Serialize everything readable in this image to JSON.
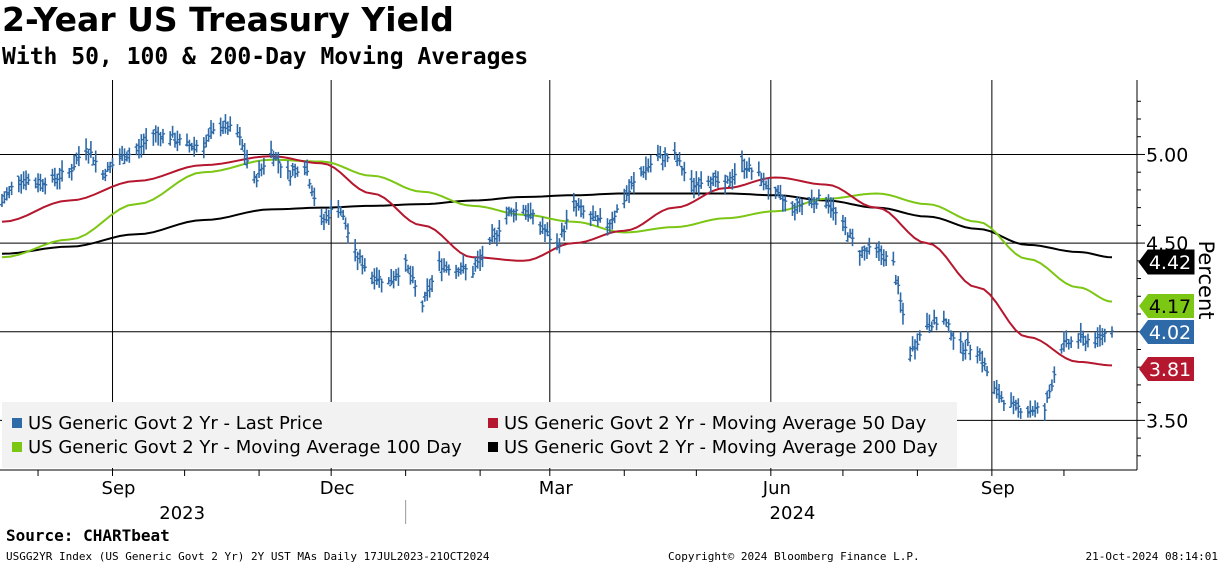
{
  "header": {
    "title": "2-Year US Treasury Yield",
    "subtitle": "With 50, 100 & 200-Day Moving Averages"
  },
  "footer": {
    "source": "Source: CHARTbeat",
    "left": "USGG2YR Index (US Generic Govt 2 Yr) 2Y UST MAs  Daily 17JUL2023-21OCT2024",
    "copyright": "Copyright© 2024 Bloomberg Finance L.P.",
    "timestamp": "21-Oct-2024 08:14:01"
  },
  "colors": {
    "last_price": "#2e6aa8",
    "ma50": "#b5172f",
    "ma100": "#7cc614",
    "ma200": "#000000"
  },
  "chart_data": {
    "type": "line",
    "title": "2-Year US Treasury Yield",
    "subtitle": "With 50, 100 & 200-Day Moving Averages",
    "ylabel": "Percent",
    "ylim": [
      3.22,
      5.42
    ],
    "y_ticks": [
      "5.00",
      "4.50",
      "3.50"
    ],
    "y_gridlines": [
      5.0,
      4.5,
      4.0,
      3.5
    ],
    "x_ticks": [
      "Sep",
      "Dec",
      "Mar",
      "Jun",
      "Sep"
    ],
    "x_tick_dates": [
      "2023-09-01",
      "2023-12-01",
      "2024-03-01",
      "2024-06-01",
      "2024-09-01"
    ],
    "year_labels": [
      "2023",
      "2024"
    ],
    "xlim": [
      "2023-07-17",
      "2024-10-21"
    ],
    "grid": true,
    "legend_position": "bottom-left",
    "series": [
      {
        "name": "US Generic Govt 2 Yr - Last Price",
        "style": "ohlc-bars",
        "color": "#2e6aa8",
        "last_value_label": "4.02",
        "points": [
          [
            "2023-07-17",
            4.73
          ],
          [
            "2023-07-24",
            4.87
          ],
          [
            "2023-07-31",
            4.84
          ],
          [
            "2023-08-07",
            4.86
          ],
          [
            "2023-08-14",
            4.9
          ],
          [
            "2023-08-21",
            5.05
          ],
          [
            "2023-08-28",
            4.89
          ],
          [
            "2023-09-04",
            4.98
          ],
          [
            "2023-09-11",
            5.02
          ],
          [
            "2023-09-18",
            5.12
          ],
          [
            "2023-09-25",
            5.1
          ],
          [
            "2023-10-02",
            5.05
          ],
          [
            "2023-10-09",
            5.06
          ],
          [
            "2023-10-16",
            5.17
          ],
          [
            "2023-10-23",
            5.12
          ],
          [
            "2023-10-30",
            4.85
          ],
          [
            "2023-11-06",
            5.02
          ],
          [
            "2023-11-13",
            4.89
          ],
          [
            "2023-11-20",
            4.95
          ],
          [
            "2023-11-27",
            4.62
          ],
          [
            "2023-12-04",
            4.72
          ],
          [
            "2023-12-11",
            4.44
          ],
          [
            "2023-12-18",
            4.32
          ],
          [
            "2023-12-25",
            4.28
          ],
          [
            "2024-01-01",
            4.38
          ],
          [
            "2024-01-08",
            4.15
          ],
          [
            "2024-01-15",
            4.38
          ],
          [
            "2024-01-22",
            4.36
          ],
          [
            "2024-01-29",
            4.34
          ],
          [
            "2024-02-05",
            4.49
          ],
          [
            "2024-02-12",
            4.66
          ],
          [
            "2024-02-19",
            4.7
          ],
          [
            "2024-02-26",
            4.6
          ],
          [
            "2024-03-04",
            4.48
          ],
          [
            "2024-03-11",
            4.72
          ],
          [
            "2024-03-18",
            4.64
          ],
          [
            "2024-03-25",
            4.6
          ],
          [
            "2024-04-01",
            4.75
          ],
          [
            "2024-04-08",
            4.9
          ],
          [
            "2024-04-15",
            4.98
          ],
          [
            "2024-04-22",
            4.99
          ],
          [
            "2024-04-29",
            4.83
          ],
          [
            "2024-05-06",
            4.87
          ],
          [
            "2024-05-13",
            4.82
          ],
          [
            "2024-05-20",
            4.95
          ],
          [
            "2024-05-27",
            4.88
          ],
          [
            "2024-06-03",
            4.77
          ],
          [
            "2024-06-10",
            4.7
          ],
          [
            "2024-06-17",
            4.74
          ],
          [
            "2024-06-24",
            4.75
          ],
          [
            "2024-07-01",
            4.6
          ],
          [
            "2024-07-08",
            4.45
          ],
          [
            "2024-07-15",
            4.46
          ],
          [
            "2024-07-22",
            4.38
          ],
          [
            "2024-07-29",
            3.88
          ],
          [
            "2024-08-05",
            4.05
          ],
          [
            "2024-08-12",
            4.06
          ],
          [
            "2024-08-19",
            3.92
          ],
          [
            "2024-08-26",
            3.91
          ],
          [
            "2024-09-02",
            3.67
          ],
          [
            "2024-09-09",
            3.58
          ],
          [
            "2024-09-16",
            3.56
          ],
          [
            "2024-09-23",
            3.56
          ],
          [
            "2024-09-30",
            3.92
          ],
          [
            "2024-10-07",
            3.96
          ],
          [
            "2024-10-14",
            3.95
          ],
          [
            "2024-10-21",
            4.02
          ]
        ]
      },
      {
        "name": "US Generic Govt 2 Yr - Moving Average 50 Day",
        "style": "line",
        "color": "#b5172f",
        "last_value_label": "3.81",
        "points": [
          [
            "2023-07-17",
            4.62
          ],
          [
            "2023-08-14",
            4.74
          ],
          [
            "2023-09-11",
            4.85
          ],
          [
            "2023-10-09",
            4.94
          ],
          [
            "2023-11-06",
            4.99
          ],
          [
            "2023-11-27",
            4.95
          ],
          [
            "2023-12-18",
            4.78
          ],
          [
            "2024-01-08",
            4.6
          ],
          [
            "2024-01-29",
            4.42
          ],
          [
            "2024-02-19",
            4.4
          ],
          [
            "2024-03-11",
            4.5
          ],
          [
            "2024-04-01",
            4.57
          ],
          [
            "2024-04-22",
            4.7
          ],
          [
            "2024-05-13",
            4.81
          ],
          [
            "2024-06-03",
            4.87
          ],
          [
            "2024-06-24",
            4.83
          ],
          [
            "2024-07-15",
            4.7
          ],
          [
            "2024-08-05",
            4.5
          ],
          [
            "2024-08-26",
            4.25
          ],
          [
            "2024-09-16",
            3.97
          ],
          [
            "2024-10-07",
            3.83
          ],
          [
            "2024-10-21",
            3.81
          ]
        ]
      },
      {
        "name": "US Generic Govt 2 Yr - Moving Average 100 Day",
        "style": "line",
        "color": "#7cc614",
        "last_value_label": "4.17",
        "points": [
          [
            "2023-07-17",
            4.42
          ],
          [
            "2023-08-14",
            4.52
          ],
          [
            "2023-09-11",
            4.72
          ],
          [
            "2023-10-09",
            4.9
          ],
          [
            "2023-11-06",
            4.97
          ],
          [
            "2023-11-27",
            4.96
          ],
          [
            "2023-12-18",
            4.88
          ],
          [
            "2024-01-08",
            4.79
          ],
          [
            "2024-01-29",
            4.71
          ],
          [
            "2024-02-19",
            4.66
          ],
          [
            "2024-03-11",
            4.62
          ],
          [
            "2024-04-01",
            4.56
          ],
          [
            "2024-04-22",
            4.59
          ],
          [
            "2024-05-13",
            4.64
          ],
          [
            "2024-06-03",
            4.68
          ],
          [
            "2024-06-24",
            4.75
          ],
          [
            "2024-07-15",
            4.78
          ],
          [
            "2024-08-05",
            4.72
          ],
          [
            "2024-08-26",
            4.62
          ],
          [
            "2024-09-16",
            4.41
          ],
          [
            "2024-10-07",
            4.25
          ],
          [
            "2024-10-21",
            4.17
          ]
        ]
      },
      {
        "name": "US Generic Govt 2 Yr - Moving Average 200 Day",
        "style": "line",
        "color": "#000000",
        "last_value_label": "4.42",
        "points": [
          [
            "2023-07-17",
            4.44
          ],
          [
            "2023-08-14",
            4.48
          ],
          [
            "2023-09-11",
            4.55
          ],
          [
            "2023-10-09",
            4.63
          ],
          [
            "2023-11-06",
            4.69
          ],
          [
            "2023-11-27",
            4.7
          ],
          [
            "2023-12-18",
            4.71
          ],
          [
            "2024-01-08",
            4.72
          ],
          [
            "2024-01-29",
            4.74
          ],
          [
            "2024-02-19",
            4.76
          ],
          [
            "2024-03-11",
            4.77
          ],
          [
            "2024-04-01",
            4.78
          ],
          [
            "2024-04-22",
            4.78
          ],
          [
            "2024-05-13",
            4.78
          ],
          [
            "2024-06-03",
            4.77
          ],
          [
            "2024-06-24",
            4.74
          ],
          [
            "2024-07-15",
            4.7
          ],
          [
            "2024-08-05",
            4.65
          ],
          [
            "2024-08-26",
            4.58
          ],
          [
            "2024-09-16",
            4.49
          ],
          [
            "2024-10-07",
            4.45
          ],
          [
            "2024-10-21",
            4.42
          ]
        ]
      }
    ]
  }
}
